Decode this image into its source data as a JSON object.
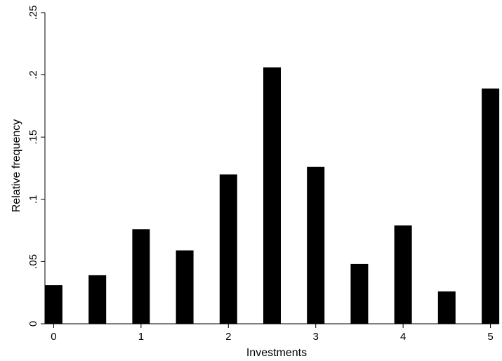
{
  "chart_data": {
    "type": "bar",
    "title": "",
    "xlabel": "Investments",
    "ylabel": "Relative frequency",
    "xlim": [
      -0.1,
      5.1
    ],
    "ylim": [
      0,
      0.25
    ],
    "x_ticks": [
      0,
      1,
      2,
      3,
      4,
      5
    ],
    "x_tick_labels": [
      "0",
      "1",
      "2",
      "3",
      "4",
      "5"
    ],
    "y_ticks": [
      0,
      0.05,
      0.1,
      0.15,
      0.2,
      0.25
    ],
    "y_tick_labels": [
      "0",
      ".05",
      ".1",
      ".15",
      ".2",
      ".25"
    ],
    "x": [
      0.0,
      0.5,
      1.0,
      1.5,
      2.0,
      2.5,
      3.0,
      3.5,
      4.0,
      4.5,
      5.0
    ],
    "values": [
      0.031,
      0.039,
      0.076,
      0.059,
      0.12,
      0.206,
      0.126,
      0.048,
      0.079,
      0.026,
      0.189
    ],
    "bar_color": "#000000",
    "grid": false,
    "legend": "none"
  }
}
